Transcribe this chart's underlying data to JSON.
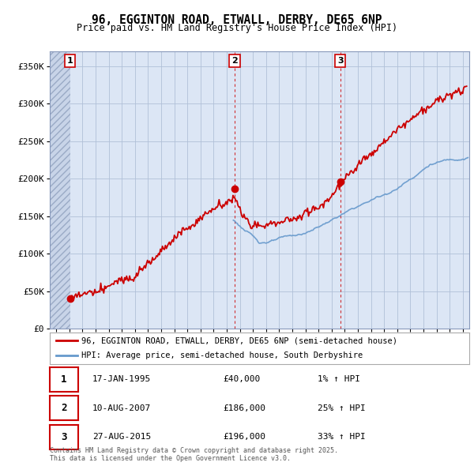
{
  "title": "96, EGGINTON ROAD, ETWALL, DERBY, DE65 6NP",
  "subtitle": "Price paid vs. HM Land Registry's House Price Index (HPI)",
  "ylim": [
    0,
    370000
  ],
  "yticks": [
    0,
    50000,
    100000,
    150000,
    200000,
    250000,
    300000,
    350000
  ],
  "ytick_labels": [
    "£0",
    "£50K",
    "£100K",
    "£150K",
    "£200K",
    "£250K",
    "£300K",
    "£350K"
  ],
  "sale_dates": [
    1995.04,
    2007.61,
    2015.66
  ],
  "sale_prices": [
    40000,
    186000,
    196000
  ],
  "sale_labels": [
    "1",
    "2",
    "3"
  ],
  "vline_color": "#cc0000",
  "sale_color": "#cc0000",
  "hpi_color": "#6699cc",
  "legend_sale": "96, EGGINTON ROAD, ETWALL, DERBY, DE65 6NP (semi-detached house)",
  "legend_hpi": "HPI: Average price, semi-detached house, South Derbyshire",
  "table_rows": [
    [
      "1",
      "17-JAN-1995",
      "£40,000",
      "1% ↑ HPI"
    ],
    [
      "2",
      "10-AUG-2007",
      "£186,000",
      "25% ↑ HPI"
    ],
    [
      "3",
      "27-AUG-2015",
      "£196,000",
      "33% ↑ HPI"
    ]
  ],
  "footer": "Contains HM Land Registry data © Crown copyright and database right 2025.\nThis data is licensed under the Open Government Licence v3.0.",
  "plot_bg": "#dce6f5",
  "hatch_bg": "#c8d4e8",
  "grid_color": "#b0c0d8",
  "xmin": 1993.5,
  "xmax": 2025.5
}
